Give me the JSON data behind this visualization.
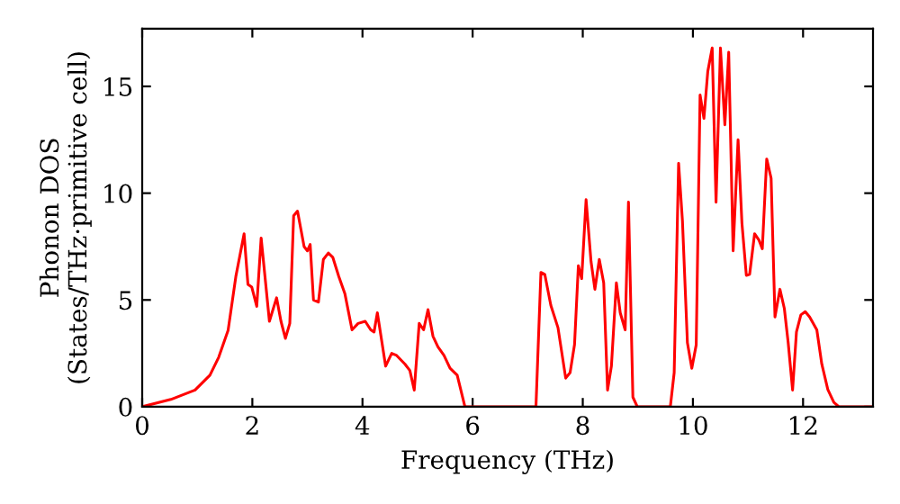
{
  "chart_data": {
    "type": "line",
    "xlabel": "Frequency (THz)",
    "ylabel": "Phonon DOS\n(States/THz·primitive cell)",
    "xlim": [
      0,
      13.27
    ],
    "ylim": [
      0,
      17.7
    ],
    "xticks": [
      0,
      2,
      4,
      6,
      8,
      10,
      12
    ],
    "yticks": [
      0,
      5,
      10,
      15
    ],
    "grid": false,
    "legend": false,
    "marker": "none",
    "line_style": "solid",
    "series": [
      {
        "color": "#ff0000",
        "x": [
          0,
          0.52,
          0.96,
          1.23,
          1.39,
          1.56,
          1.7,
          1.85,
          1.92,
          1.99,
          2.08,
          2.16,
          2.31,
          2.44,
          2.52,
          2.6,
          2.68,
          2.75,
          2.82,
          2.94,
          3.0,
          3.05,
          3.11,
          3.2,
          3.29,
          3.38,
          3.46,
          3.57,
          3.68,
          3.81,
          3.92,
          4.05,
          4.15,
          4.21,
          4.27,
          4.42,
          4.53,
          4.62,
          4.77,
          4.86,
          4.94,
          5.03,
          5.11,
          5.19,
          5.28,
          5.37,
          5.48,
          5.59,
          5.72,
          5.86,
          7.15,
          7.24,
          7.31,
          7.42,
          7.55,
          7.69,
          7.77,
          7.85,
          7.92,
          7.98,
          8.06,
          8.15,
          8.22,
          8.3,
          8.38,
          8.45,
          8.52,
          8.61,
          8.68,
          8.77,
          8.83,
          8.91,
          8.99,
          9.59,
          9.66,
          9.74,
          9.81,
          9.9,
          9.98,
          10.06,
          10.13,
          10.2,
          10.27,
          10.35,
          10.42,
          10.5,
          10.58,
          10.65,
          10.73,
          10.82,
          10.89,
          10.97,
          11.03,
          11.12,
          11.2,
          11.26,
          11.34,
          11.42,
          11.49,
          11.58,
          11.66,
          11.73,
          11.81,
          11.88,
          11.96,
          12.04,
          12.12,
          12.25,
          12.34,
          12.45,
          12.56,
          12.65,
          13.27
        ],
        "values": [
          0,
          0.34,
          0.78,
          1.48,
          2.32,
          3.58,
          6.09,
          8.1,
          5.73,
          5.6,
          4.7,
          7.9,
          4.0,
          5.1,
          4.0,
          3.2,
          3.9,
          8.94,
          9.16,
          7.5,
          7.3,
          7.6,
          5.0,
          4.9,
          6.9,
          7.2,
          7.0,
          6.1,
          5.3,
          3.6,
          3.9,
          4.0,
          3.6,
          3.5,
          4.4,
          1.9,
          2.5,
          2.4,
          2.0,
          1.7,
          0.78,
          3.9,
          3.6,
          4.55,
          3.3,
          2.8,
          2.4,
          1.8,
          1.48,
          0,
          0,
          6.29,
          6.2,
          4.75,
          3.7,
          1.34,
          1.6,
          2.9,
          6.6,
          6.0,
          9.7,
          6.8,
          5.5,
          6.9,
          5.8,
          0.78,
          1.9,
          5.8,
          4.4,
          3.6,
          9.58,
          0.45,
          0,
          0,
          1.6,
          11.4,
          8.7,
          3.0,
          1.8,
          2.9,
          14.6,
          13.5,
          15.7,
          16.8,
          9.58,
          16.8,
          13.2,
          16.6,
          7.3,
          12.5,
          8.6,
          6.15,
          6.2,
          8.1,
          7.8,
          7.4,
          11.6,
          10.7,
          4.2,
          5.5,
          4.6,
          3.0,
          0.78,
          3.5,
          4.3,
          4.45,
          4.2,
          3.6,
          2.0,
          0.8,
          0.2,
          0,
          0
        ]
      }
    ]
  }
}
